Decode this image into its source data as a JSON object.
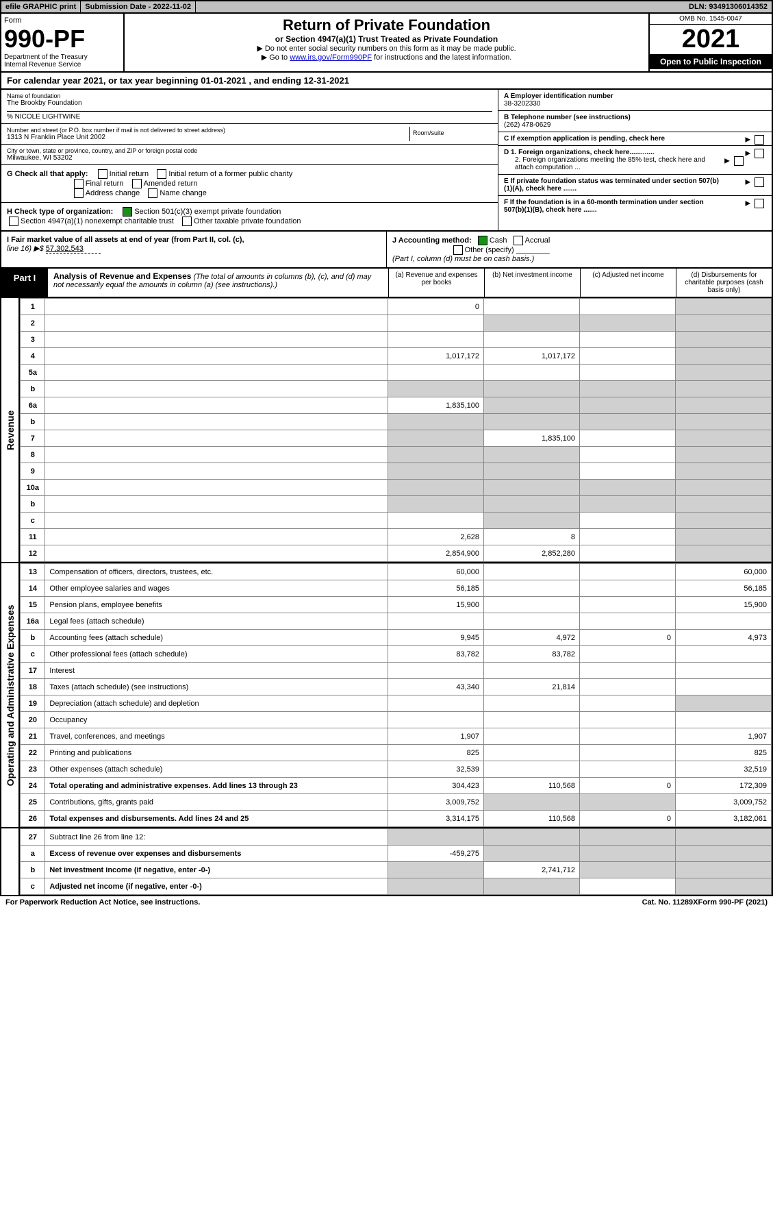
{
  "topbar": {
    "efile": "efile GRAPHIC print",
    "submission": "Submission Date - 2022-11-02",
    "dln": "DLN: 93491306014352"
  },
  "header": {
    "form_word": "Form",
    "form_no": "990-PF",
    "dept": "Department of the Treasury\nInternal Revenue Service",
    "title": "Return of Private Foundation",
    "subtitle": "or Section 4947(a)(1) Trust Treated as Private Foundation",
    "instr1": "▶ Do not enter social security numbers on this form as it may be made public.",
    "instr2_pre": "▶ Go to ",
    "instr2_link": "www.irs.gov/Form990PF",
    "instr2_post": " for instructions and the latest information.",
    "omb": "OMB No. 1545-0047",
    "year": "2021",
    "open_public": "Open to Public Inspection"
  },
  "calyear": "For calendar year 2021, or tax year beginning 01-01-2021                          , and ending 12-31-2021",
  "name_block": {
    "label": "Name of foundation",
    "name": "The Brookby Foundation",
    "care_of": "% NICOLE LIGHTWINE",
    "addr_label": "Number and street (or P.O. box number if mail is not delivered to street address)",
    "addr": "1313 N Franklin Place Unit 2002",
    "room_label": "Room/suite",
    "city_label": "City or town, state or province, country, and ZIP or foreign postal code",
    "city": "Milwaukee, WI  53202"
  },
  "right_info": {
    "a_label": "A Employer identification number",
    "a_val": "38-3202330",
    "b_label": "B Telephone number (see instructions)",
    "b_val": "(262) 478-0629",
    "c_label": "C If exemption application is pending, check here",
    "d1": "D 1. Foreign organizations, check here.............",
    "d2": "2. Foreign organizations meeting the 85% test, check here and attach computation ...",
    "e": "E  If private foundation status was terminated under section 507(b)(1)(A), check here .......",
    "f": "F  If the foundation is in a 60-month termination under section 507(b)(1)(B), check here ......."
  },
  "g": {
    "label": "G Check all that apply:",
    "opts": [
      "Initial return",
      "Initial return of a former public charity",
      "Final return",
      "Amended return",
      "Address change",
      "Name change"
    ]
  },
  "h": {
    "label": "H Check type of organization:",
    "opt1": "Section 501(c)(3) exempt private foundation",
    "opt2": "Section 4947(a)(1) nonexempt charitable trust",
    "opt3": "Other taxable private foundation"
  },
  "i": {
    "label": "I Fair market value of all assets at end of year (from Part II, col. (c),",
    "line": "line 16) ▶$",
    "val": "57,302,543"
  },
  "j": {
    "label": "J Accounting method:",
    "cash": "Cash",
    "accrual": "Accrual",
    "other": "Other (specify)",
    "note": "(Part I, column (d) must be on cash basis.)"
  },
  "part1": {
    "label": "Part I",
    "title": "Analysis of Revenue and Expenses",
    "note": "(The total of amounts in columns (b), (c), and (d) may not necessarily equal the amounts in column (a) (see instructions).)",
    "col_a": "(a)  Revenue and expenses per books",
    "col_b": "(b)  Net investment income",
    "col_c": "(c)  Adjusted net income",
    "col_d": "(d)  Disbursements for charitable purposes (cash basis only)"
  },
  "revenue_label": "Revenue",
  "expenses_label": "Operating and Administrative Expenses",
  "rows": [
    {
      "n": "1",
      "d": "",
      "a": "0",
      "b": "",
      "c": ""
    },
    {
      "n": "2",
      "d": "",
      "a": "",
      "b": "",
      "c": "",
      "shade_bcd": true
    },
    {
      "n": "3",
      "d": "",
      "a": "",
      "b": "",
      "c": ""
    },
    {
      "n": "4",
      "d": "",
      "a": "1,017,172",
      "b": "1,017,172",
      "c": ""
    },
    {
      "n": "5a",
      "d": "",
      "a": "",
      "b": "",
      "c": ""
    },
    {
      "n": "b",
      "d": "",
      "a": "",
      "b": "",
      "c": "",
      "shade_all": true
    },
    {
      "n": "6a",
      "d": "",
      "a": "1,835,100",
      "b": "",
      "c": "",
      "shade_bcd": true
    },
    {
      "n": "b",
      "d": "",
      "a": "",
      "b": "",
      "c": "",
      "shade_all": true
    },
    {
      "n": "7",
      "d": "",
      "a": "",
      "b": "1,835,100",
      "c": "",
      "shade_a": true
    },
    {
      "n": "8",
      "d": "",
      "a": "",
      "b": "",
      "c": "",
      "shade_ab": true
    },
    {
      "n": "9",
      "d": "",
      "a": "",
      "b": "",
      "c": "",
      "shade_ab": true
    },
    {
      "n": "10a",
      "d": "",
      "a": "",
      "b": "",
      "c": "",
      "shade_all": true
    },
    {
      "n": "b",
      "d": "",
      "a": "",
      "b": "",
      "c": "",
      "shade_all": true
    },
    {
      "n": "c",
      "d": "",
      "a": "",
      "b": "",
      "c": "",
      "shade_b": true
    },
    {
      "n": "11",
      "d": "",
      "a": "2,628",
      "b": "8",
      "c": ""
    },
    {
      "n": "12",
      "d": "",
      "a": "2,854,900",
      "b": "2,852,280",
      "c": "",
      "bold": true
    }
  ],
  "exp_rows": [
    {
      "n": "13",
      "d": "60,000",
      "a": "60,000",
      "b": "",
      "c": ""
    },
    {
      "n": "14",
      "d": "56,185",
      "a": "56,185",
      "b": "",
      "c": ""
    },
    {
      "n": "15",
      "d": "15,900",
      "a": "15,900",
      "b": "",
      "c": ""
    },
    {
      "n": "16a",
      "d": "",
      "a": "",
      "b": "",
      "c": ""
    },
    {
      "n": "b",
      "d": "4,973",
      "a": "9,945",
      "b": "4,972",
      "c": "0"
    },
    {
      "n": "c",
      "d": "",
      "a": "83,782",
      "b": "83,782",
      "c": ""
    },
    {
      "n": "17",
      "d": "",
      "a": "",
      "b": "",
      "c": ""
    },
    {
      "n": "18",
      "d": "",
      "a": "43,340",
      "b": "21,814",
      "c": ""
    },
    {
      "n": "19",
      "d": "",
      "a": "",
      "b": "",
      "c": "",
      "shade_d": true
    },
    {
      "n": "20",
      "d": "",
      "a": "",
      "b": "",
      "c": ""
    },
    {
      "n": "21",
      "d": "1,907",
      "a": "1,907",
      "b": "",
      "c": ""
    },
    {
      "n": "22",
      "d": "825",
      "a": "825",
      "b": "",
      "c": ""
    },
    {
      "n": "23",
      "d": "32,519",
      "a": "32,539",
      "b": "",
      "c": ""
    },
    {
      "n": "24",
      "d": "172,309",
      "a": "304,423",
      "b": "110,568",
      "c": "0",
      "bold": true
    },
    {
      "n": "25",
      "d": "3,009,752",
      "a": "3,009,752",
      "b": "",
      "c": "",
      "shade_bc": true
    },
    {
      "n": "26",
      "d": "3,182,061",
      "a": "3,314,175",
      "b": "110,568",
      "c": "0",
      "bold": true
    }
  ],
  "bottom_rows": [
    {
      "n": "27",
      "d": "",
      "a": "",
      "b": "",
      "c": "",
      "shade_all": true
    },
    {
      "n": "a",
      "d": "",
      "a": "-459,275",
      "b": "",
      "c": "",
      "bold": true,
      "shade_bcd": true
    },
    {
      "n": "b",
      "d": "",
      "a": "",
      "b": "2,741,712",
      "c": "",
      "bold": true,
      "shade_a": true,
      "shade_cd": true
    },
    {
      "n": "c",
      "d": "",
      "a": "",
      "b": "",
      "c": "",
      "bold": true,
      "shade_ab": true,
      "shade_d": true
    }
  ],
  "footer": {
    "left": "For Paperwork Reduction Act Notice, see instructions.",
    "mid": "Cat. No. 11289X",
    "right": "Form 990-PF (2021)"
  }
}
